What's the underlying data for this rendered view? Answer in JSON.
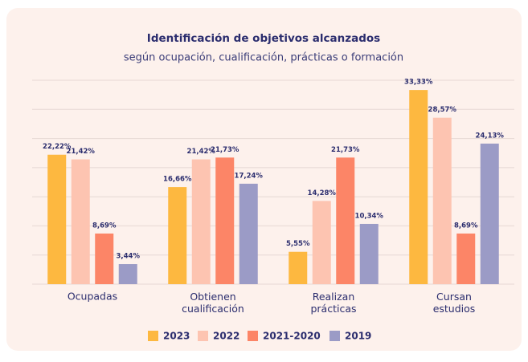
{
  "chart_data": {
    "type": "bar",
    "title": "Identificación de objetivos alcanzados",
    "subtitle": "según ocupación, cualificación, prácticas o formación",
    "categories": [
      "Ocupadas",
      "Obtienen\ncualificación",
      "Realizan\nprácticas",
      "Cursan\nestudios"
    ],
    "series": [
      {
        "name": "2023",
        "color": "#fdb840",
        "values": [
          22.22,
          16.66,
          5.55,
          33.33
        ],
        "value_labels": [
          "22,22%",
          "16,66%",
          "5,55%",
          "33,33%"
        ]
      },
      {
        "name": "2022",
        "color": "#fdc4b1",
        "values": [
          21.42,
          21.42,
          14.28,
          28.57
        ],
        "value_labels": [
          "21,42%",
          "21,42%",
          "14,28%",
          "28,57%"
        ]
      },
      {
        "name": "2021-2020",
        "color": "#fc8567",
        "values": [
          8.69,
          21.73,
          21.73,
          8.69
        ],
        "value_labels": [
          "8,69%",
          "21,73%",
          "21,73%",
          "8,69%"
        ]
      },
      {
        "name": "2019",
        "color": "#9b9bc6",
        "values": [
          3.44,
          17.24,
          10.34,
          24.13
        ],
        "value_labels": [
          "3,44%",
          "17,24%",
          "10,34%",
          "24,13%"
        ]
      }
    ],
    "ylim": [
      0,
      35
    ],
    "yticks": [
      0,
      5,
      10,
      15,
      20,
      25,
      30,
      35
    ],
    "grid": true,
    "legend": "bottom"
  }
}
